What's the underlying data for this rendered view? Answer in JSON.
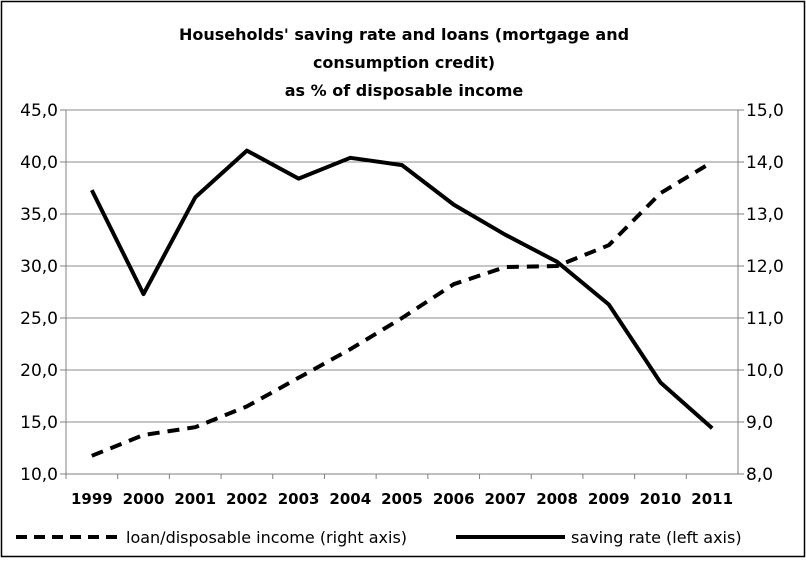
{
  "chart_data": {
    "type": "line",
    "title_lines": [
      "Households' saving rate and loans (mortgage and",
      "consumption credit)",
      "as % of disposable income"
    ],
    "categories": [
      "1999",
      "2000",
      "2001",
      "2002",
      "2003",
      "2004",
      "2005",
      "2006",
      "2007",
      "2008",
      "2009",
      "2010",
      "2011"
    ],
    "left_axis": {
      "ylim": [
        10,
        45
      ],
      "ticks": [
        "10,0",
        "15,0",
        "20,0",
        "25,0",
        "30,0",
        "35,0",
        "40,0",
        "45,0"
      ]
    },
    "right_axis": {
      "ylim": [
        8,
        15
      ],
      "ticks": [
        "8,0",
        "9,0",
        "10,0",
        "11,0",
        "12,0",
        "13,0",
        "14,0",
        "15,0"
      ]
    },
    "series": [
      {
        "name": "loan/disposable income (right axis)",
        "axis": "right",
        "style": "dashed",
        "values": [
          8.35,
          8.75,
          8.9,
          9.3,
          9.85,
          10.4,
          11.0,
          11.65,
          11.98,
          12.0,
          12.4,
          13.4,
          14.0
        ]
      },
      {
        "name": "saving rate (left axis)",
        "axis": "left",
        "style": "solid",
        "values": [
          37.3,
          27.3,
          36.6,
          41.1,
          38.4,
          40.4,
          39.7,
          35.9,
          33.0,
          30.4,
          26.3,
          18.8,
          14.4
        ]
      }
    ],
    "grid": true,
    "legend": "bottom",
    "colors": {
      "line": "#000000",
      "grid": "#8c8c8c"
    }
  }
}
